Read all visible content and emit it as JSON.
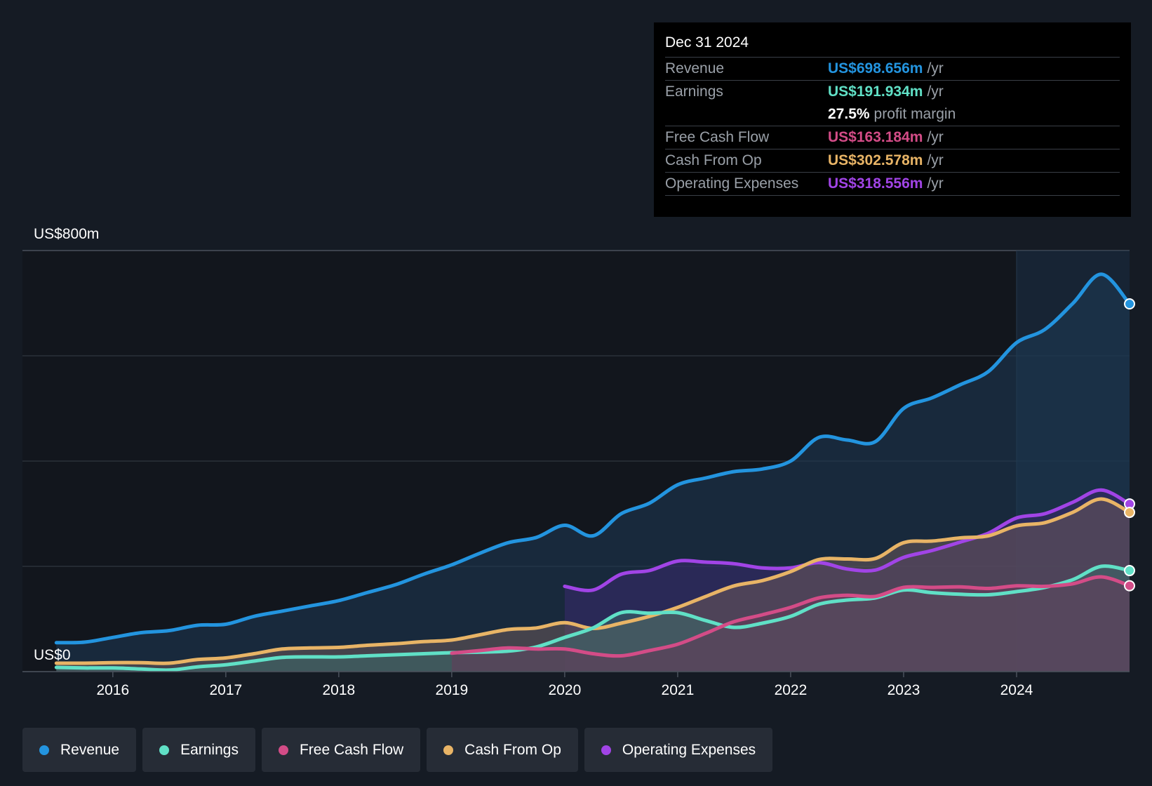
{
  "chart_data": {
    "type": "area",
    "ylim": [
      0,
      800
    ],
    "y_tick_labels": {
      "top": "US$800m",
      "bottom": "US$0"
    },
    "gridlines": [
      0,
      200,
      400,
      600,
      800
    ],
    "x_tick_labels": [
      "2016",
      "2017",
      "2018",
      "2019",
      "2020",
      "2021",
      "2022",
      "2023",
      "2024"
    ],
    "x_ticks": [
      2016,
      2017,
      2018,
      2019,
      2020,
      2021,
      2022,
      2023,
      2024
    ],
    "xlim": [
      2015.2,
      2025.0
    ],
    "series": [
      {
        "name": "Revenue",
        "color": "#2394df",
        "fill": "#1d3a55",
        "points": [
          [
            2015.5,
            55
          ],
          [
            2015.75,
            56
          ],
          [
            2016,
            65
          ],
          [
            2016.25,
            74
          ],
          [
            2016.5,
            78
          ],
          [
            2016.75,
            88
          ],
          [
            2017,
            90
          ],
          [
            2017.25,
            105
          ],
          [
            2017.5,
            115
          ],
          [
            2017.75,
            125
          ],
          [
            2018,
            135
          ],
          [
            2018.25,
            150
          ],
          [
            2018.5,
            165
          ],
          [
            2018.75,
            185
          ],
          [
            2019,
            203
          ],
          [
            2019.25,
            225
          ],
          [
            2019.5,
            245
          ],
          [
            2019.75,
            255
          ],
          [
            2020,
            278
          ],
          [
            2020.25,
            258
          ],
          [
            2020.5,
            300
          ],
          [
            2020.75,
            320
          ],
          [
            2021,
            355
          ],
          [
            2021.25,
            368
          ],
          [
            2021.5,
            380
          ],
          [
            2021.75,
            385
          ],
          [
            2022,
            400
          ],
          [
            2022.25,
            445
          ],
          [
            2022.5,
            440
          ],
          [
            2022.75,
            437
          ],
          [
            2023,
            500
          ],
          [
            2023.25,
            520
          ],
          [
            2023.5,
            545
          ],
          [
            2023.75,
            570
          ],
          [
            2024,
            625
          ],
          [
            2024.25,
            650
          ],
          [
            2024.5,
            700
          ],
          [
            2024.75,
            755
          ],
          [
            2025,
            698.656
          ]
        ]
      },
      {
        "name": "Operating Expenses",
        "color": "#a144e6",
        "fill": "#3a2a6e",
        "points": [
          [
            2020,
            162
          ],
          [
            2020.25,
            155
          ],
          [
            2020.5,
            185
          ],
          [
            2020.75,
            192
          ],
          [
            2021,
            210
          ],
          [
            2021.25,
            208
          ],
          [
            2021.5,
            205
          ],
          [
            2021.75,
            197
          ],
          [
            2022,
            197
          ],
          [
            2022.25,
            207
          ],
          [
            2022.5,
            195
          ],
          [
            2022.75,
            193
          ],
          [
            2023,
            217
          ],
          [
            2023.25,
            230
          ],
          [
            2023.5,
            246
          ],
          [
            2023.75,
            263
          ],
          [
            2024,
            292
          ],
          [
            2024.25,
            300
          ],
          [
            2024.5,
            322
          ],
          [
            2024.75,
            345
          ],
          [
            2025,
            318.556
          ]
        ]
      },
      {
        "name": "Cash From Op",
        "color": "#e8b466",
        "fill": "#6c5a5a",
        "points": [
          [
            2015.5,
            16
          ],
          [
            2015.75,
            16
          ],
          [
            2016,
            17
          ],
          [
            2016.25,
            17
          ],
          [
            2016.5,
            16
          ],
          [
            2016.75,
            23
          ],
          [
            2017,
            26
          ],
          [
            2017.25,
            34
          ],
          [
            2017.5,
            43
          ],
          [
            2017.75,
            45
          ],
          [
            2018,
            46
          ],
          [
            2018.25,
            50
          ],
          [
            2018.5,
            53
          ],
          [
            2018.75,
            57
          ],
          [
            2019,
            60
          ],
          [
            2019.25,
            70
          ],
          [
            2019.5,
            80
          ],
          [
            2019.75,
            83
          ],
          [
            2020,
            93
          ],
          [
            2020.25,
            82
          ],
          [
            2020.5,
            92
          ],
          [
            2020.75,
            105
          ],
          [
            2021,
            122
          ],
          [
            2021.25,
            143
          ],
          [
            2021.5,
            163
          ],
          [
            2021.75,
            173
          ],
          [
            2022,
            190
          ],
          [
            2022.25,
            213
          ],
          [
            2022.5,
            214
          ],
          [
            2022.75,
            215
          ],
          [
            2023,
            245
          ],
          [
            2023.25,
            248
          ],
          [
            2023.5,
            254
          ],
          [
            2023.75,
            258
          ],
          [
            2024,
            277
          ],
          [
            2024.25,
            283
          ],
          [
            2024.5,
            303
          ],
          [
            2024.75,
            328
          ],
          [
            2025,
            302.578
          ]
        ]
      },
      {
        "name": "Earnings",
        "color": "#60e0c6",
        "fill": "#3a6a6a",
        "points": [
          [
            2015.5,
            8
          ],
          [
            2015.75,
            7
          ],
          [
            2016,
            7
          ],
          [
            2016.25,
            5
          ],
          [
            2016.5,
            3
          ],
          [
            2016.75,
            9
          ],
          [
            2017,
            13
          ],
          [
            2017.25,
            20
          ],
          [
            2017.5,
            27
          ],
          [
            2017.75,
            28
          ],
          [
            2018,
            28
          ],
          [
            2018.25,
            30
          ],
          [
            2018.5,
            32
          ],
          [
            2018.75,
            34
          ],
          [
            2019,
            36
          ],
          [
            2019.25,
            37
          ],
          [
            2019.5,
            39
          ],
          [
            2019.75,
            47
          ],
          [
            2020,
            65
          ],
          [
            2020.25,
            83
          ],
          [
            2020.5,
            112
          ],
          [
            2020.75,
            111
          ],
          [
            2021,
            112
          ],
          [
            2021.25,
            97
          ],
          [
            2021.5,
            84
          ],
          [
            2021.75,
            92
          ],
          [
            2022,
            105
          ],
          [
            2022.25,
            128
          ],
          [
            2022.5,
            136
          ],
          [
            2022.75,
            140
          ],
          [
            2023,
            155
          ],
          [
            2023.25,
            150
          ],
          [
            2023.5,
            147
          ],
          [
            2023.75,
            146
          ],
          [
            2024,
            152
          ],
          [
            2024.25,
            160
          ],
          [
            2024.5,
            175
          ],
          [
            2024.75,
            200
          ],
          [
            2025,
            191.934
          ]
        ]
      },
      {
        "name": "Free Cash Flow",
        "color": "#d34c87",
        "fill": "#663a5a",
        "points": [
          [
            2019,
            35
          ],
          [
            2019.25,
            40
          ],
          [
            2019.5,
            45
          ],
          [
            2019.75,
            43
          ],
          [
            2020,
            43
          ],
          [
            2020.25,
            34
          ],
          [
            2020.5,
            30
          ],
          [
            2020.75,
            40
          ],
          [
            2021,
            52
          ],
          [
            2021.25,
            73
          ],
          [
            2021.5,
            95
          ],
          [
            2021.75,
            108
          ],
          [
            2022,
            122
          ],
          [
            2022.25,
            140
          ],
          [
            2022.5,
            145
          ],
          [
            2022.75,
            143
          ],
          [
            2023,
            160
          ],
          [
            2023.25,
            160
          ],
          [
            2023.5,
            161
          ],
          [
            2023.75,
            158
          ],
          [
            2024,
            163
          ],
          [
            2024.25,
            162
          ],
          [
            2024.5,
            167
          ],
          [
            2024.75,
            180
          ],
          [
            2025,
            163.184
          ]
        ]
      }
    ],
    "highlight_start": 2024.0,
    "highlight_end": 2025.0
  },
  "tooltip": {
    "date": "Dec 31 2024",
    "rows": {
      "revenue": {
        "label": "Revenue",
        "value": "US$698.656m",
        "unit": "/yr",
        "color": "#2394df"
      },
      "earnings": {
        "label": "Earnings",
        "value": "US$191.934m",
        "unit": "/yr",
        "color": "#60e0c6"
      },
      "margin": {
        "value": "27.5%",
        "unit": "profit margin"
      },
      "fcf": {
        "label": "Free Cash Flow",
        "value": "US$163.184m",
        "unit": "/yr",
        "color": "#d34c87"
      },
      "cfo": {
        "label": "Cash From Op",
        "value": "US$302.578m",
        "unit": "/yr",
        "color": "#e8b466"
      },
      "opex": {
        "label": "Operating Expenses",
        "value": "US$318.556m",
        "unit": "/yr",
        "color": "#a144e6"
      }
    }
  },
  "legend": [
    {
      "label": "Revenue",
      "color": "#2394df"
    },
    {
      "label": "Earnings",
      "color": "#60e0c6"
    },
    {
      "label": "Free Cash Flow",
      "color": "#d34c87"
    },
    {
      "label": "Cash From Op",
      "color": "#e8b466"
    },
    {
      "label": "Operating Expenses",
      "color": "#a144e6"
    }
  ]
}
